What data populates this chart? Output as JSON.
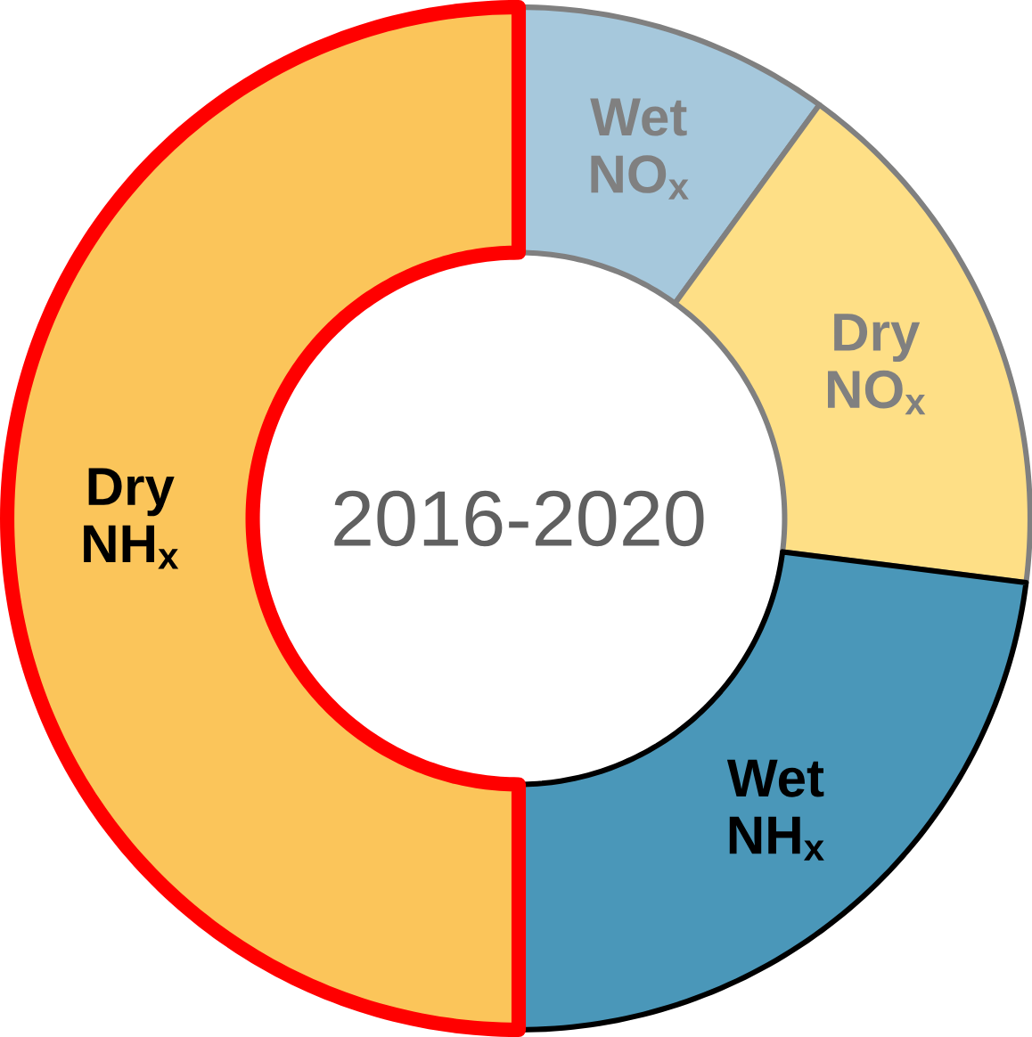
{
  "chart_data": {
    "type": "donut",
    "title": "2016-2020",
    "categories": [
      "Wet NO$_{x}$",
      "Dry NO$_{x}$",
      "Wet NH$_{x}$",
      "Dry NH$_{x}$"
    ],
    "values": [
      10,
      17,
      23,
      50
    ],
    "colors": [
      "#a6c8dc",
      "#fedf86",
      "#4a97b9",
      "#fbc55a"
    ]
  }
}
